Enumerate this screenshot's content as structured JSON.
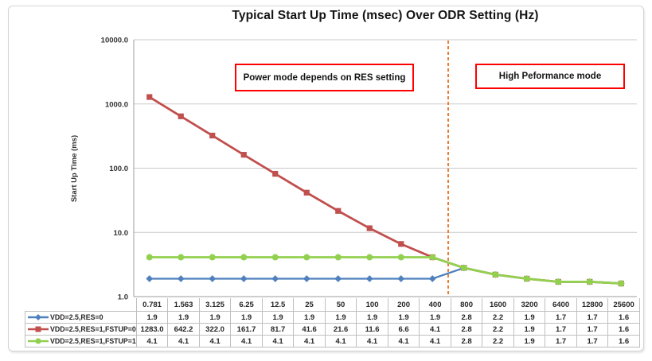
{
  "annotations": {
    "left_box": "Power mode depends on RES setting",
    "right_box": "High Peformance mode"
  },
  "chart_data": {
    "type": "line",
    "title": "Typical Start Up Time (msec) Over ODR Setting (Hz)",
    "xlabel": "",
    "ylabel": "Start Up Time (ms)",
    "y_scale": "log",
    "ylim": [
      1.0,
      10000.0
    ],
    "y_ticks": [
      "10000.0",
      "1000.0",
      "100.0",
      "10.0",
      "1.0"
    ],
    "grid": true,
    "legend_position": "table-left",
    "categories": [
      "0.781",
      "1.563",
      "3.125",
      "6.25",
      "12.5",
      "25",
      "50",
      "100",
      "200",
      "400",
      "800",
      "1600",
      "3200",
      "6400",
      "12800",
      "25600"
    ],
    "series": [
      {
        "name": "VDD=2.5,RES=0",
        "color": "#4F81BD",
        "marker": "diamond",
        "values": [
          1.9,
          1.9,
          1.9,
          1.9,
          1.9,
          1.9,
          1.9,
          1.9,
          1.9,
          1.9,
          2.8,
          2.2,
          1.9,
          1.7,
          1.7,
          1.6
        ]
      },
      {
        "name": "VDD=2.5,RES=1,FSTUP=0",
        "color": "#C0504D",
        "marker": "square",
        "values": [
          1283.0,
          642.2,
          322.0,
          161.7,
          81.7,
          41.6,
          21.6,
          11.6,
          6.6,
          4.1,
          2.8,
          2.2,
          1.9,
          1.7,
          1.7,
          1.6
        ]
      },
      {
        "name": "VDD=2.5,RES=1,FSTUP=1",
        "color": "#92D050",
        "marker": "circle",
        "values": [
          4.1,
          4.1,
          4.1,
          4.1,
          4.1,
          4.1,
          4.1,
          4.1,
          4.1,
          4.1,
          2.8,
          2.2,
          1.9,
          1.7,
          1.7,
          1.6
        ]
      }
    ],
    "divider": {
      "after_category": "400",
      "color": "#ED7D31",
      "style": "dashed"
    }
  },
  "table": {
    "columns": [
      "0.781",
      "1.563",
      "3.125",
      "6.25",
      "12.5",
      "25",
      "50",
      "100",
      "200",
      "400",
      "800",
      "1600",
      "3200",
      "6400",
      "12800",
      "25600"
    ],
    "row_labels": [
      "VDD=2.5,RES=0",
      "VDD=2.5,RES=1,FSTUP=0",
      "VDD=2.5,RES=1,FSTUP=1"
    ],
    "rows": [
      [
        "1.9",
        "1.9",
        "1.9",
        "1.9",
        "1.9",
        "1.9",
        "1.9",
        "1.9",
        "1.9",
        "1.9",
        "2.8",
        "2.2",
        "1.9",
        "1.7",
        "1.7",
        "1.6"
      ],
      [
        "1283.0",
        "642.2",
        "322.0",
        "161.7",
        "81.7",
        "41.6",
        "21.6",
        "11.6",
        "6.6",
        "4.1",
        "2.8",
        "2.2",
        "1.9",
        "1.7",
        "1.7",
        "1.6"
      ],
      [
        "4.1",
        "4.1",
        "4.1",
        "4.1",
        "4.1",
        "4.1",
        "4.1",
        "4.1",
        "4.1",
        "4.1",
        "2.8",
        "2.2",
        "1.9",
        "1.7",
        "1.7",
        "1.6"
      ]
    ]
  }
}
